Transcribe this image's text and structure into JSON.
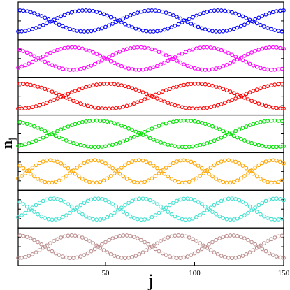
{
  "chart_data": {
    "type": "scatter",
    "title": "",
    "xlabel": "j",
    "ylabel": "n",
    "ylabel_subscript": "j",
    "xlim": [
      1,
      150
    ],
    "x_ticks": [
      50,
      100,
      150
    ],
    "x_tick_labels": [
      "50",
      "100",
      "150"
    ],
    "marker": "open-circle",
    "grid": false,
    "legend": "none",
    "panels": [
      {
        "name": "",
        "color": "#0000ff",
        "x": [
          1,
          150
        ],
        "upper_mean": 0.55,
        "lower_mean": 0.45,
        "envelope_amplitude": 0.28,
        "envelope_period": 75,
        "envelope_phase": 0.0
      },
      {
        "name": "",
        "color": "#ff00ff",
        "x": [
          1,
          150
        ],
        "upper_mean": 0.55,
        "lower_mean": 0.45,
        "envelope_amplitude": 0.3,
        "envelope_period": 75,
        "envelope_phase": 0.6
      },
      {
        "name": "",
        "color": "#ff0000",
        "x": [
          1,
          150
        ],
        "upper_mean": 0.55,
        "lower_mean": 0.45,
        "envelope_amplitude": 0.33,
        "envelope_period": 100,
        "envelope_phase": 0.0
      },
      {
        "name": "",
        "color": "#00e000",
        "x": [
          1,
          150
        ],
        "upper_mean": 0.55,
        "lower_mean": 0.45,
        "envelope_amplitude": 0.35,
        "envelope_period": 100,
        "envelope_phase": 0.4
      },
      {
        "name": "",
        "color": "#ffa500",
        "x": [
          1,
          150
        ],
        "upper_mean": 0.55,
        "lower_mean": 0.45,
        "envelope_amplitude": 0.3,
        "envelope_period": 50,
        "envelope_phase": 0.9
      },
      {
        "name": "",
        "color": "#40e0d0",
        "x": [
          1,
          150
        ],
        "upper_mean": 0.55,
        "lower_mean": 0.45,
        "envelope_amplitude": 0.28,
        "envelope_period": 50,
        "envelope_phase": 0.7
      },
      {
        "name": "",
        "color": "#bc8f8f",
        "x": [
          1,
          150
        ],
        "upper_mean": 0.55,
        "lower_mean": 0.45,
        "envelope_amplitude": 0.3,
        "envelope_period": 60,
        "envelope_phase": 0.0
      }
    ]
  }
}
